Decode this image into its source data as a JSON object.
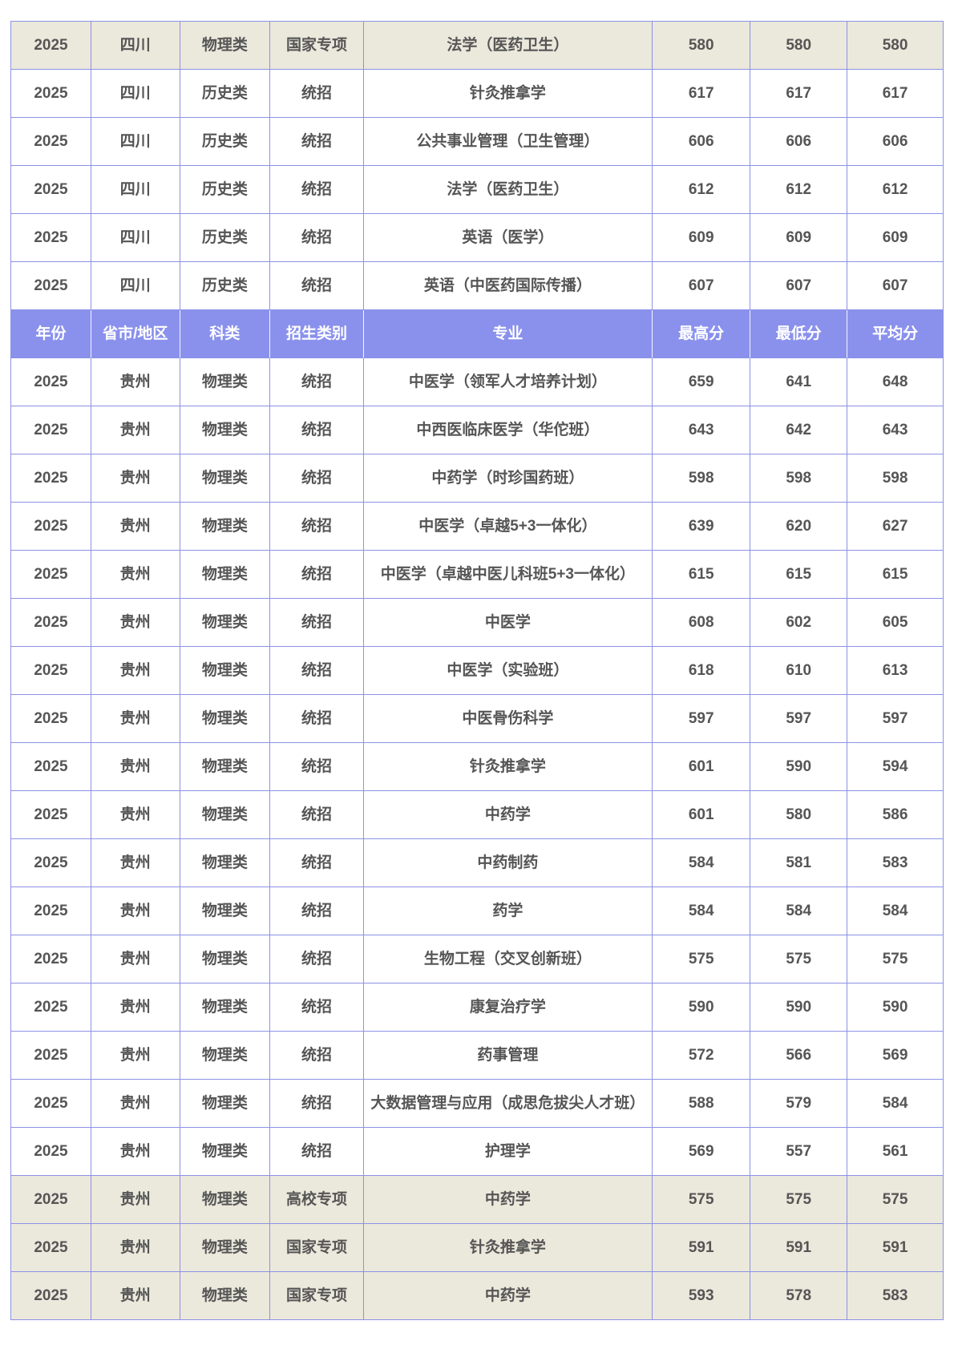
{
  "colors": {
    "header_bg": "#8A91EC",
    "header_text": "#FFFFFF",
    "border": "#8C92E4",
    "shaded_row_bg": "#EBE8DC",
    "text": "#555555"
  },
  "table": {
    "columns": [
      "年份",
      "省市/地区",
      "科类",
      "招生类别",
      "专业",
      "最高分",
      "最低分",
      "平均分"
    ],
    "column_keys": [
      "year",
      "province",
      "subject-type",
      "admission-type",
      "major",
      "max-score",
      "min-score",
      "avg-score"
    ],
    "rows": [
      {
        "type": "data",
        "shaded": true,
        "cells": [
          "2025",
          "四川",
          "物理类",
          "国家专项",
          "法学（医药卫生）",
          "580",
          "580",
          "580"
        ]
      },
      {
        "type": "data",
        "shaded": false,
        "cells": [
          "2025",
          "四川",
          "历史类",
          "统招",
          "针灸推拿学",
          "617",
          "617",
          "617"
        ]
      },
      {
        "type": "data",
        "shaded": false,
        "cells": [
          "2025",
          "四川",
          "历史类",
          "统招",
          "公共事业管理（卫生管理）",
          "606",
          "606",
          "606"
        ]
      },
      {
        "type": "data",
        "shaded": false,
        "cells": [
          "2025",
          "四川",
          "历史类",
          "统招",
          "法学（医药卫生）",
          "612",
          "612",
          "612"
        ]
      },
      {
        "type": "data",
        "shaded": false,
        "cells": [
          "2025",
          "四川",
          "历史类",
          "统招",
          "英语（医学）",
          "609",
          "609",
          "609"
        ]
      },
      {
        "type": "data",
        "shaded": false,
        "cells": [
          "2025",
          "四川",
          "历史类",
          "统招",
          "英语（中医药国际传播）",
          "607",
          "607",
          "607"
        ]
      },
      {
        "type": "header"
      },
      {
        "type": "data",
        "shaded": false,
        "cells": [
          "2025",
          "贵州",
          "物理类",
          "统招",
          "中医学（领军人才培养计划）",
          "659",
          "641",
          "648"
        ]
      },
      {
        "type": "data",
        "shaded": false,
        "cells": [
          "2025",
          "贵州",
          "物理类",
          "统招",
          "中西医临床医学（华佗班）",
          "643",
          "642",
          "643"
        ]
      },
      {
        "type": "data",
        "shaded": false,
        "cells": [
          "2025",
          "贵州",
          "物理类",
          "统招",
          "中药学（时珍国药班）",
          "598",
          "598",
          "598"
        ]
      },
      {
        "type": "data",
        "shaded": false,
        "cells": [
          "2025",
          "贵州",
          "物理类",
          "统招",
          "中医学（卓越5+3一体化）",
          "639",
          "620",
          "627"
        ]
      },
      {
        "type": "data",
        "shaded": false,
        "cells": [
          "2025",
          "贵州",
          "物理类",
          "统招",
          "中医学（卓越中医儿科班5+3一体化）",
          "615",
          "615",
          "615"
        ]
      },
      {
        "type": "data",
        "shaded": false,
        "cells": [
          "2025",
          "贵州",
          "物理类",
          "统招",
          "中医学",
          "608",
          "602",
          "605"
        ]
      },
      {
        "type": "data",
        "shaded": false,
        "cells": [
          "2025",
          "贵州",
          "物理类",
          "统招",
          "中医学（实验班）",
          "618",
          "610",
          "613"
        ]
      },
      {
        "type": "data",
        "shaded": false,
        "cells": [
          "2025",
          "贵州",
          "物理类",
          "统招",
          "中医骨伤科学",
          "597",
          "597",
          "597"
        ]
      },
      {
        "type": "data",
        "shaded": false,
        "cells": [
          "2025",
          "贵州",
          "物理类",
          "统招",
          "针灸推拿学",
          "601",
          "590",
          "594"
        ]
      },
      {
        "type": "data",
        "shaded": false,
        "cells": [
          "2025",
          "贵州",
          "物理类",
          "统招",
          "中药学",
          "601",
          "580",
          "586"
        ]
      },
      {
        "type": "data",
        "shaded": false,
        "cells": [
          "2025",
          "贵州",
          "物理类",
          "统招",
          "中药制药",
          "584",
          "581",
          "583"
        ]
      },
      {
        "type": "data",
        "shaded": false,
        "cells": [
          "2025",
          "贵州",
          "物理类",
          "统招",
          "药学",
          "584",
          "584",
          "584"
        ]
      },
      {
        "type": "data",
        "shaded": false,
        "cells": [
          "2025",
          "贵州",
          "物理类",
          "统招",
          "生物工程（交叉创新班）",
          "575",
          "575",
          "575"
        ]
      },
      {
        "type": "data",
        "shaded": false,
        "cells": [
          "2025",
          "贵州",
          "物理类",
          "统招",
          "康复治疗学",
          "590",
          "590",
          "590"
        ]
      },
      {
        "type": "data",
        "shaded": false,
        "cells": [
          "2025",
          "贵州",
          "物理类",
          "统招",
          "药事管理",
          "572",
          "566",
          "569"
        ]
      },
      {
        "type": "data",
        "shaded": false,
        "cells": [
          "2025",
          "贵州",
          "物理类",
          "统招",
          "大数据管理与应用（成思危拔尖人才班）",
          "588",
          "579",
          "584"
        ]
      },
      {
        "type": "data",
        "shaded": false,
        "cells": [
          "2025",
          "贵州",
          "物理类",
          "统招",
          "护理学",
          "569",
          "557",
          "561"
        ]
      },
      {
        "type": "data",
        "shaded": true,
        "cells": [
          "2025",
          "贵州",
          "物理类",
          "高校专项",
          "中药学",
          "575",
          "575",
          "575"
        ]
      },
      {
        "type": "data",
        "shaded": true,
        "cells": [
          "2025",
          "贵州",
          "物理类",
          "国家专项",
          "针灸推拿学",
          "591",
          "591",
          "591"
        ]
      },
      {
        "type": "data",
        "shaded": true,
        "cells": [
          "2025",
          "贵州",
          "物理类",
          "国家专项",
          "中药学",
          "593",
          "578",
          "583"
        ]
      }
    ]
  }
}
